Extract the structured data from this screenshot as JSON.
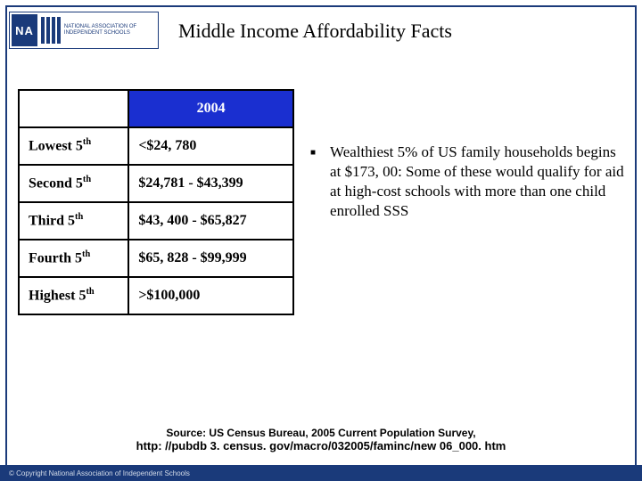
{
  "logo": {
    "mark": "NA",
    "text_lines": "NATIONAL ASSOCIATION OF INDEPENDENT SCHOOLS"
  },
  "title": "Middle Income Affordability Facts",
  "table": {
    "header_blank": "",
    "header_year": "2004",
    "header_year_bg": "#1a2fd0",
    "header_year_fg": "#ffffff",
    "border_color": "#000000",
    "rows": [
      {
        "label_main": "Lowest 5",
        "label_sup": "th",
        "value": "<$24, 780"
      },
      {
        "label_main": "Second 5",
        "label_sup": "th",
        "value": "$24,781 - $43,399"
      },
      {
        "label_main": "Third 5",
        "label_sup": "th",
        "value": "$43, 400 - $65,827"
      },
      {
        "label_main": "Fourth 5",
        "label_sup": "th",
        "value": "$65, 828 - $99,999"
      },
      {
        "label_main": "Highest 5",
        "label_sup": "th",
        "value": ">$100,000"
      }
    ],
    "label_fontsize": 16,
    "value_fontsize": 16,
    "font_family": "Times New Roman"
  },
  "bullet": {
    "marker": "■",
    "text": "Wealthiest 5% of US family households begins at $173, 00: Some of these would qualify for aid at high-cost schools with more than one child enrolled SSS"
  },
  "source": {
    "line1": "Source: US Census Bureau, 2005 Current Population Survey,",
    "line2": "http: //pubdb 3. census. gov/macro/032005/faminc/new 06_000. htm"
  },
  "footer": "© Copyright National Association of Independent Schools",
  "colors": {
    "brand_blue": "#1a3a7a",
    "background": "#ffffff",
    "text": "#000000"
  }
}
